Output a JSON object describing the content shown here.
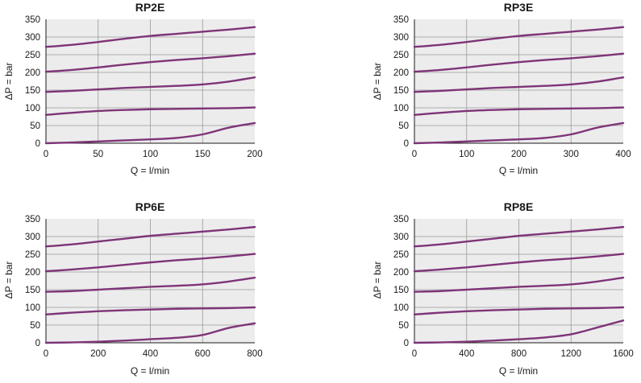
{
  "chart_data": [
    {
      "type": "line",
      "title": "RP2E",
      "xlabel": "Q = l/min",
      "ylabel": "ΔP = bar",
      "xlim": [
        0,
        200
      ],
      "ylim": [
        0,
        350
      ],
      "xticks": [
        "0",
        "50",
        "100",
        "150",
        "200"
      ],
      "yticks": [
        "0",
        "50",
        "100",
        "150",
        "200",
        "250",
        "300",
        "350"
      ],
      "grid": true,
      "series": [
        {
          "x": [
            0,
            25,
            50,
            75,
            100,
            125,
            150,
            175,
            200
          ],
          "y": [
            272,
            278,
            286,
            295,
            303,
            309,
            315,
            321,
            328
          ]
        },
        {
          "x": [
            0,
            25,
            50,
            75,
            100,
            125,
            150,
            175,
            200
          ],
          "y": [
            202,
            207,
            214,
            222,
            229,
            235,
            240,
            246,
            253
          ]
        },
        {
          "x": [
            0,
            25,
            50,
            75,
            100,
            125,
            150,
            175,
            200
          ],
          "y": [
            145,
            148,
            152,
            156,
            159,
            162,
            166,
            174,
            186
          ]
        },
        {
          "x": [
            0,
            25,
            50,
            75,
            100,
            125,
            150,
            175,
            200
          ],
          "y": [
            80,
            86,
            91,
            94,
            96,
            97,
            98,
            99,
            101
          ]
        },
        {
          "x": [
            0,
            25,
            50,
            75,
            100,
            125,
            150,
            175,
            200
          ],
          "y": [
            0,
            2,
            5,
            8,
            11,
            15,
            25,
            44,
            57
          ]
        }
      ]
    },
    {
      "type": "line",
      "title": "RP3E",
      "xlabel": "Q = l/min",
      "ylabel": "ΔP = bar",
      "xlim": [
        0,
        400
      ],
      "ylim": [
        0,
        350
      ],
      "xticks": [
        "0",
        "100",
        "200",
        "300",
        "400"
      ],
      "yticks": [
        "0",
        "50",
        "100",
        "150",
        "200",
        "250",
        "300",
        "350"
      ],
      "grid": true,
      "series": [
        {
          "x": [
            0,
            50,
            100,
            150,
            200,
            250,
            300,
            350,
            400
          ],
          "y": [
            272,
            278,
            286,
            295,
            303,
            309,
            315,
            321,
            328
          ]
        },
        {
          "x": [
            0,
            50,
            100,
            150,
            200,
            250,
            300,
            350,
            400
          ],
          "y": [
            202,
            207,
            214,
            222,
            229,
            235,
            240,
            246,
            253
          ]
        },
        {
          "x": [
            0,
            50,
            100,
            150,
            200,
            250,
            300,
            350,
            400
          ],
          "y": [
            145,
            148,
            152,
            156,
            159,
            162,
            166,
            174,
            186
          ]
        },
        {
          "x": [
            0,
            50,
            100,
            150,
            200,
            250,
            300,
            350,
            400
          ],
          "y": [
            80,
            86,
            91,
            94,
            96,
            97,
            98,
            99,
            101
          ]
        },
        {
          "x": [
            0,
            50,
            100,
            150,
            200,
            250,
            300,
            350,
            400
          ],
          "y": [
            0,
            2,
            5,
            8,
            11,
            15,
            25,
            44,
            57
          ]
        }
      ]
    },
    {
      "type": "line",
      "title": "RP6E",
      "xlabel": "Q = l/min",
      "ylabel": "ΔP = bar",
      "xlim": [
        0,
        800
      ],
      "ylim": [
        0,
        350
      ],
      "xticks": [
        "0",
        "200",
        "400",
        "600",
        "800"
      ],
      "yticks": [
        "0",
        "50",
        "100",
        "150",
        "200",
        "250",
        "300",
        "350"
      ],
      "grid": true,
      "series": [
        {
          "x": [
            0,
            100,
            200,
            300,
            400,
            500,
            600,
            700,
            800
          ],
          "y": [
            272,
            278,
            286,
            294,
            302,
            308,
            314,
            320,
            327
          ]
        },
        {
          "x": [
            0,
            100,
            200,
            300,
            400,
            500,
            600,
            700,
            800
          ],
          "y": [
            202,
            207,
            213,
            220,
            227,
            233,
            238,
            244,
            251
          ]
        },
        {
          "x": [
            0,
            100,
            200,
            300,
            400,
            500,
            600,
            700,
            800
          ],
          "y": [
            144,
            146,
            150,
            154,
            158,
            161,
            165,
            173,
            184
          ]
        },
        {
          "x": [
            0,
            100,
            200,
            300,
            400,
            500,
            600,
            700,
            800
          ],
          "y": [
            80,
            85,
            89,
            92,
            94,
            96,
            97,
            98,
            100
          ]
        },
        {
          "x": [
            0,
            100,
            200,
            300,
            400,
            500,
            600,
            700,
            800
          ],
          "y": [
            0,
            1,
            3,
            6,
            10,
            14,
            22,
            42,
            55
          ]
        }
      ]
    },
    {
      "type": "line",
      "title": "RP8E",
      "xlabel": "Q = l/min",
      "ylabel": "ΔP = bar",
      "xlim": [
        0,
        1600
      ],
      "ylim": [
        0,
        350
      ],
      "xticks": [
        "0",
        "400",
        "800",
        "1200",
        "1600"
      ],
      "yticks": [
        "0",
        "50",
        "100",
        "150",
        "200",
        "250",
        "300",
        "350"
      ],
      "grid": true,
      "series": [
        {
          "x": [
            0,
            200,
            400,
            600,
            800,
            1000,
            1200,
            1400,
            1600
          ],
          "y": [
            272,
            278,
            286,
            294,
            302,
            308,
            314,
            320,
            327
          ]
        },
        {
          "x": [
            0,
            200,
            400,
            600,
            800,
            1000,
            1200,
            1400,
            1600
          ],
          "y": [
            202,
            207,
            213,
            220,
            227,
            233,
            238,
            244,
            251
          ]
        },
        {
          "x": [
            0,
            200,
            400,
            600,
            800,
            1000,
            1200,
            1400,
            1600
          ],
          "y": [
            144,
            146,
            150,
            154,
            158,
            161,
            165,
            173,
            184
          ]
        },
        {
          "x": [
            0,
            200,
            400,
            600,
            800,
            1000,
            1200,
            1400,
            1600
          ],
          "y": [
            80,
            85,
            89,
            92,
            94,
            96,
            97,
            98,
            100
          ]
        },
        {
          "x": [
            0,
            200,
            400,
            600,
            800,
            1000,
            1200,
            1400,
            1600
          ],
          "y": [
            0,
            1,
            3,
            6,
            10,
            15,
            24,
            43,
            63
          ]
        }
      ]
    }
  ],
  "colors": {
    "series": "#7e3477",
    "grid": "#9a9a9a",
    "plot_bg": "#ececec",
    "axis": "#1a1a1a"
  }
}
